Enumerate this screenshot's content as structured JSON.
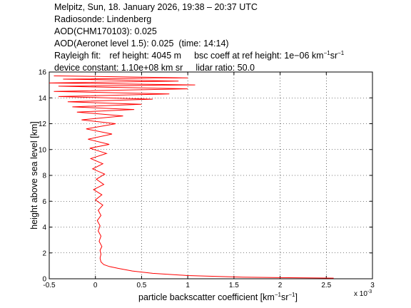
{
  "header": {
    "line1": "Melpitz, Sun, 18. January 2026, 19:38 – 20:37 UTC",
    "line2": "Radiosonde: Lindenberg",
    "line3": "AOD(CHM170103): 0.025",
    "line4": "AOD(Aeronet level 1.5): 0.025",
    "line4_time": "(time: 14:14)",
    "rayleigh_label": "Rayleigh fit:",
    "ref_height": "ref height: 4045 m",
    "bsc_coeff_prefix": "bsc coeff at ref height: 1e−06 km",
    "bsc_coeff_sup1": "−1",
    "bsc_coeff_sr": "sr",
    "bsc_coeff_sup2": "−1",
    "device_constant": "device constant: 1.10e+08 km sr",
    "lidar_ratio": "lidar ratio: 50.0"
  },
  "chart_data": {
    "type": "line",
    "xlabel": "particle backscatter coefficient [km⁻¹sr⁻¹]",
    "xlabel_parts": {
      "main": "particle backscatter coefficient [km",
      "sup1": "−1",
      "mid": "sr",
      "sup2": "−1",
      "end": "]"
    },
    "ylabel": "height above sea level [km]",
    "x_multiplier_label": "x 10",
    "x_multiplier_exp": "-3",
    "xlim": [
      -0.5,
      3
    ],
    "ylim": [
      0,
      16
    ],
    "xticks": [
      -0.5,
      0,
      0.5,
      1,
      1.5,
      2,
      2.5,
      3
    ],
    "xtick_labels": [
      "-0.5",
      "0",
      "0.5",
      "1",
      "1.5",
      "2",
      "2.5",
      "3"
    ],
    "yticks": [
      0,
      2,
      4,
      6,
      8,
      10,
      12,
      14,
      16
    ],
    "ytick_labels": [
      "0",
      "2",
      "4",
      "6",
      "8",
      "10",
      "12",
      "14",
      "16"
    ],
    "grid": true,
    "line_color": "#ff0000",
    "series": [
      {
        "x": [
          2.58,
          1.6,
          1.0,
          0.62,
          0.4,
          0.25,
          0.15,
          0.09,
          0.06,
          0.05,
          0.06,
          0.05,
          0.07,
          0.04,
          0.06,
          0.03,
          0.05,
          0.02,
          0.06,
          0.03,
          0.08,
          0.0,
          0.07,
          -0.02,
          0.09,
          0.01,
          0.1,
          -0.03,
          0.08,
          -0.05,
          0.12,
          -0.06,
          0.15,
          -0.08,
          0.18,
          -0.1,
          0.22,
          -0.15,
          0.3,
          -0.2,
          0.42,
          -0.25,
          0.5,
          -0.3,
          0.62,
          -0.4,
          0.8,
          -0.45,
          1.0,
          -0.4,
          1.08,
          -0.5,
          0.9,
          -0.35,
          1.0,
          -0.45
        ],
        "y": [
          0.05,
          0.12,
          0.25,
          0.42,
          0.6,
          0.8,
          0.95,
          1.1,
          1.3,
          1.6,
          1.9,
          2.2,
          2.5,
          2.9,
          3.3,
          3.7,
          4.1,
          4.5,
          4.9,
          5.3,
          5.7,
          6.1,
          6.5,
          6.9,
          7.3,
          7.7,
          8.1,
          8.5,
          8.9,
          9.3,
          9.7,
          10.1,
          10.4,
          10.8,
          11.2,
          11.6,
          12.0,
          12.3,
          12.6,
          12.9,
          13.1,
          13.3,
          13.5,
          13.7,
          13.9,
          14.1,
          14.3,
          14.5,
          14.7,
          14.9,
          15.0,
          15.15,
          15.3,
          15.45,
          15.55,
          15.7
        ]
      }
    ]
  }
}
